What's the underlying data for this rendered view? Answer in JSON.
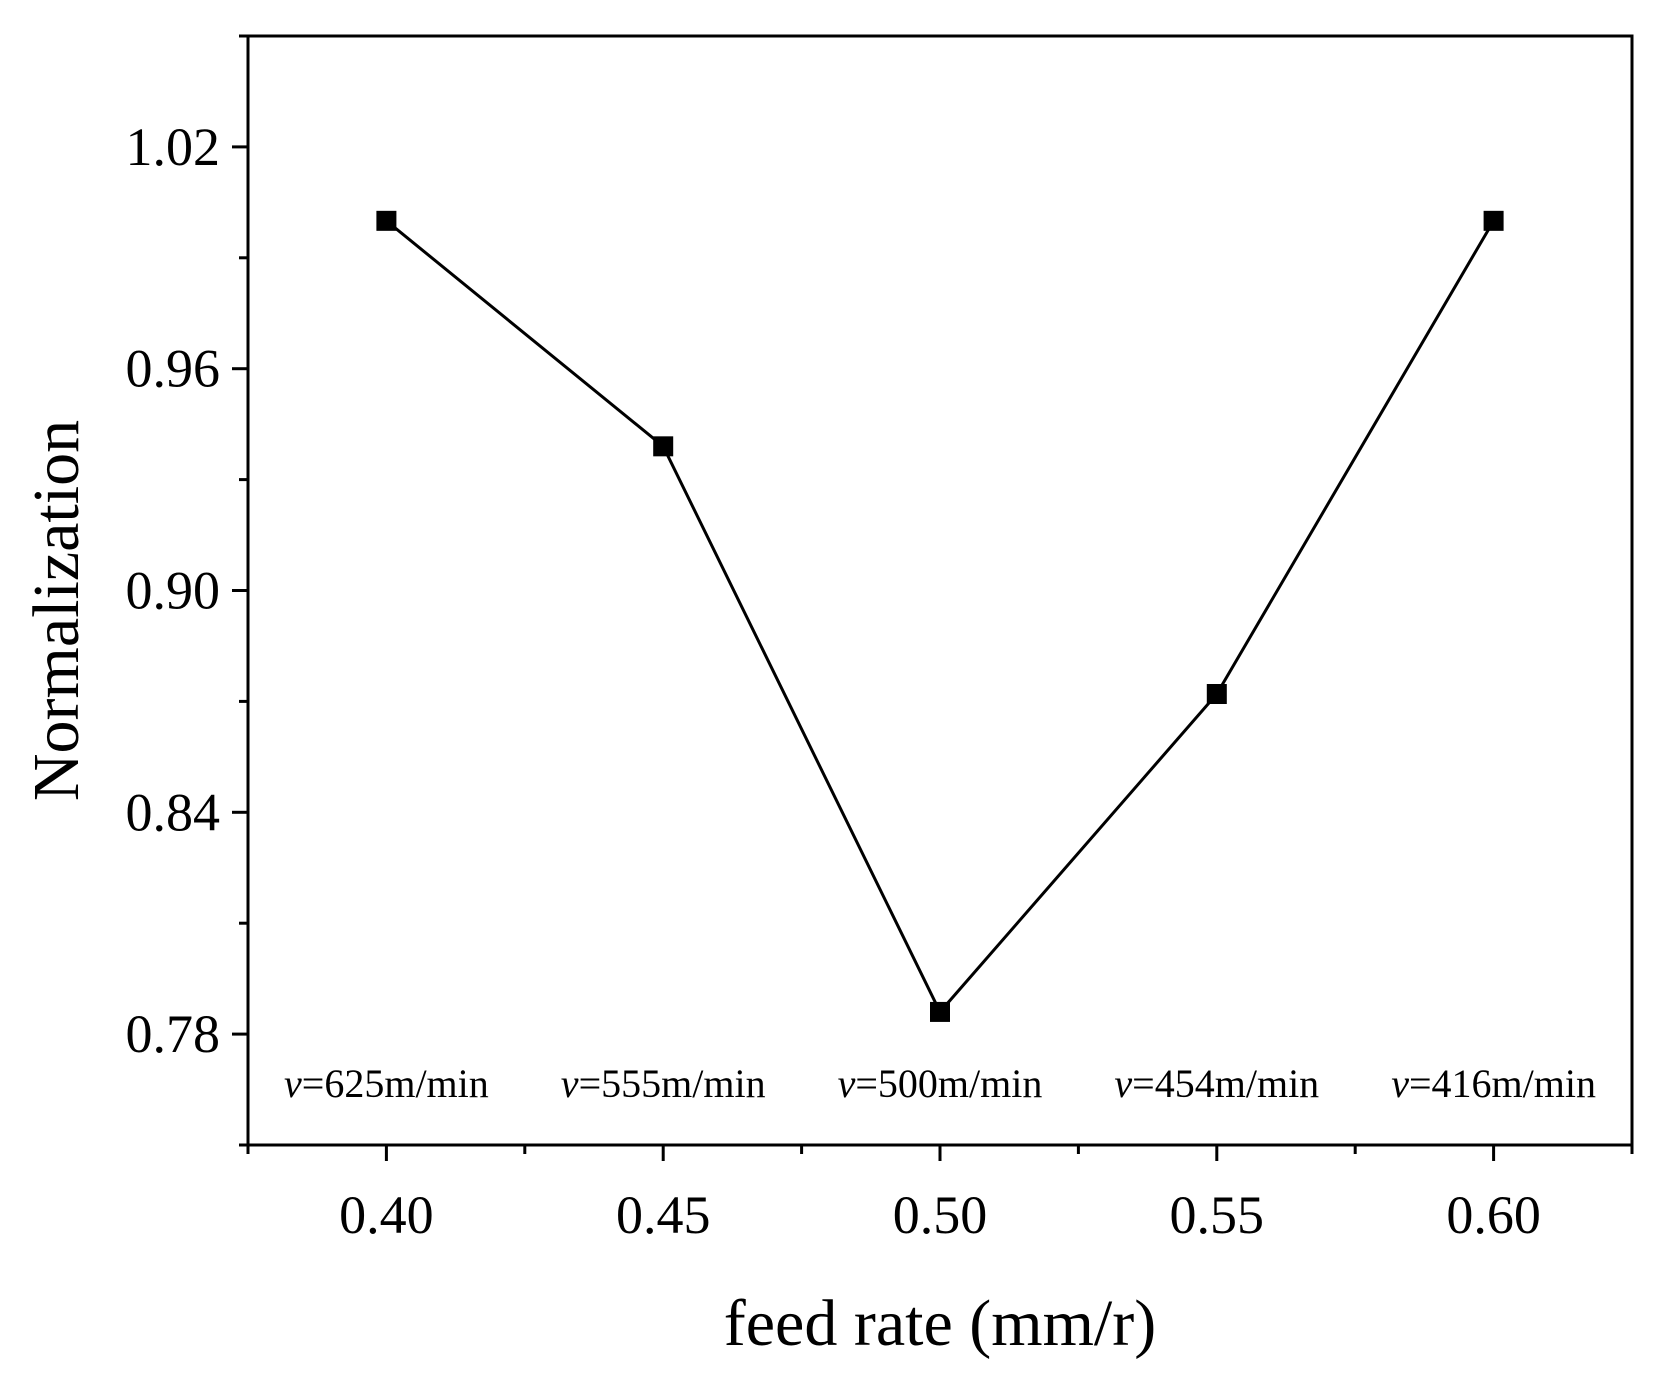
{
  "chart_data": {
    "type": "line",
    "title": "",
    "xlabel": "feed rate (mm/r)",
    "ylabel": "Normalization",
    "x": [
      0.4,
      0.45,
      0.5,
      0.55,
      0.6
    ],
    "x_tick_labels": [
      "0.40",
      "0.45",
      "0.50",
      "0.55",
      "0.60"
    ],
    "y_tick_values": [
      0.78,
      0.84,
      0.9,
      0.96,
      1.02
    ],
    "y_tick_labels": [
      "0.78",
      "0.84",
      "0.90",
      "0.96",
      "1.02"
    ],
    "xlim": [
      0.375,
      0.625
    ],
    "ylim": [
      0.75,
      1.05
    ],
    "grid": false,
    "marker": "square",
    "colors": {
      "line": "#000000",
      "marker": "#000000",
      "frame": "#000000"
    },
    "series": [
      {
        "name": "Normalization",
        "values": [
          1.0,
          0.939,
          0.786,
          0.872,
          1.0
        ]
      }
    ],
    "annotations": [
      {
        "x": 0.4,
        "var": "v",
        "text": "=625m/min"
      },
      {
        "x": 0.45,
        "var": "v",
        "text": "=555m/min"
      },
      {
        "x": 0.5,
        "var": "v",
        "text": "=500m/min"
      },
      {
        "x": 0.55,
        "var": "v",
        "text": "=454m/min"
      },
      {
        "x": 0.6,
        "var": "v",
        "text": "=416m/min"
      }
    ]
  }
}
